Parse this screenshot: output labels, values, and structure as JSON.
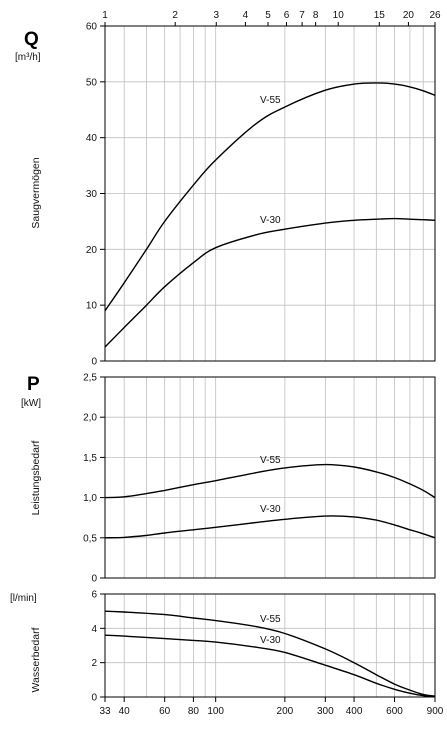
{
  "chart_data": [
    {
      "type": "line",
      "id": "Q",
      "title": "Q",
      "unit": "[m³/h]",
      "ylabel": "Saugvermögen",
      "ylim": [
        0,
        60
      ],
      "yticks": [
        0,
        10,
        20,
        30,
        40,
        50,
        60
      ],
      "ytick_labels": [
        "0",
        "10",
        "20",
        "30",
        "40",
        "50",
        "60"
      ],
      "xscale": "log",
      "top_axis": {
        "ticks": [
          1,
          2,
          3,
          4,
          5,
          6,
          7,
          8,
          10,
          15,
          20,
          26
        ],
        "labels": [
          "1",
          "2",
          "3",
          "4",
          "5",
          "6",
          "7",
          "8",
          "10",
          "15",
          "20",
          "26"
        ]
      },
      "series": [
        {
          "name": "V-55",
          "x": [
            33,
            40,
            50,
            60,
            80,
            100,
            150,
            200,
            300,
            400,
            500,
            600,
            700,
            800,
            900
          ],
          "y": [
            9,
            14,
            20,
            25,
            31.5,
            36,
            42.5,
            45.5,
            48.5,
            49.6,
            49.8,
            49.6,
            49.1,
            48.4,
            47.6
          ]
        },
        {
          "name": "V-30",
          "x": [
            33,
            40,
            50,
            60,
            80,
            100,
            150,
            200,
            300,
            400,
            500,
            600,
            700,
            800,
            900
          ],
          "y": [
            2.5,
            6,
            10,
            13.3,
            17.6,
            20.3,
            22.6,
            23.6,
            24.7,
            25.2,
            25.4,
            25.5,
            25.4,
            25.3,
            25.2
          ]
        }
      ]
    },
    {
      "type": "line",
      "id": "P",
      "title": "P",
      "unit": "[kW]",
      "ylabel": "Leistungsbedarf",
      "ylim": [
        0,
        2.5
      ],
      "yticks": [
        0,
        0.5,
        1.0,
        1.5,
        2.0,
        2.5
      ],
      "ytick_labels": [
        "0",
        "0,5",
        "1,0",
        "1,5",
        "2,0",
        "2,5"
      ],
      "xscale": "log",
      "series": [
        {
          "name": "V-55",
          "x": [
            33,
            40,
            50,
            60,
            80,
            100,
            150,
            200,
            300,
            400,
            500,
            600,
            700,
            800,
            900
          ],
          "y": [
            1.0,
            1.01,
            1.05,
            1.09,
            1.16,
            1.21,
            1.31,
            1.37,
            1.41,
            1.38,
            1.32,
            1.25,
            1.17,
            1.09,
            1.0
          ]
        },
        {
          "name": "V-30",
          "x": [
            33,
            40,
            50,
            60,
            80,
            100,
            150,
            200,
            300,
            400,
            500,
            600,
            700,
            800,
            900
          ],
          "y": [
            0.5,
            0.505,
            0.53,
            0.56,
            0.6,
            0.63,
            0.69,
            0.73,
            0.77,
            0.76,
            0.72,
            0.66,
            0.6,
            0.55,
            0.5
          ]
        }
      ]
    },
    {
      "type": "line",
      "id": "W",
      "unit": "[l/min]",
      "ylabel": "Wasserbedarf",
      "ylim": [
        0,
        6
      ],
      "yticks": [
        0,
        2,
        4,
        6
      ],
      "ytick_labels": [
        "0",
        "2",
        "4",
        "6"
      ],
      "xscale": "log",
      "xticks": [
        33,
        40,
        60,
        80,
        100,
        200,
        300,
        400,
        600,
        900
      ],
      "xtick_labels": [
        "33",
        "40",
        "60",
        "80",
        "100",
        "200",
        "300",
        "400",
        "600",
        "900"
      ],
      "series": [
        {
          "name": "V-55",
          "x": [
            33,
            40,
            60,
            80,
            100,
            150,
            200,
            300,
            400,
            500,
            600,
            700,
            800,
            900
          ],
          "y": [
            5.0,
            4.95,
            4.8,
            4.6,
            4.45,
            4.1,
            3.7,
            2.8,
            2.0,
            1.3,
            0.75,
            0.4,
            0.15,
            0.05
          ]
        },
        {
          "name": "V-30",
          "x": [
            33,
            40,
            60,
            80,
            100,
            150,
            200,
            300,
            400,
            500,
            600,
            700,
            800,
            900
          ],
          "y": [
            3.6,
            3.55,
            3.4,
            3.3,
            3.2,
            2.9,
            2.6,
            1.85,
            1.3,
            0.8,
            0.45,
            0.22,
            0.08,
            0.03
          ]
        }
      ]
    }
  ],
  "colors": {
    "line": "#000000",
    "grid": "#bfbfbf",
    "background": "#ffffff"
  }
}
